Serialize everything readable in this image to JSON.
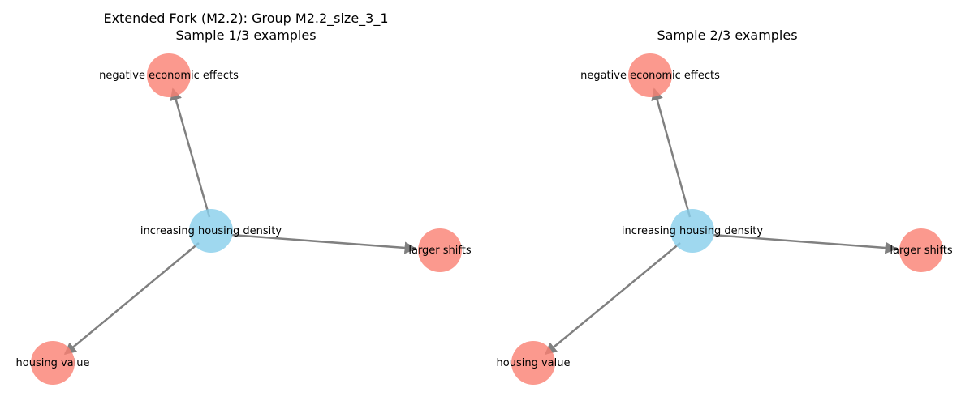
{
  "panels": [
    {
      "title_lines": [
        "Extended Fork (M2.2): Group M2.2_size_3_1",
        "Sample 1/3 examples"
      ],
      "nodes": [
        {
          "id": "center",
          "label": "increasing housing density",
          "color": "#87CEEB",
          "role": "cause"
        },
        {
          "id": "top",
          "label": "negative economic effects",
          "color": "#FA8072",
          "role": "effect"
        },
        {
          "id": "right",
          "label": "larger shifts",
          "color": "#FA8072",
          "role": "effect"
        },
        {
          "id": "bottom",
          "label": "housing value",
          "color": "#FA8072",
          "role": "effect"
        }
      ],
      "edges": [
        {
          "from": "center",
          "to": "top"
        },
        {
          "from": "center",
          "to": "right"
        },
        {
          "from": "center",
          "to": "bottom"
        }
      ]
    },
    {
      "title_lines": [
        "Sample 2/3 examples"
      ],
      "nodes": [
        {
          "id": "center",
          "label": "increasing housing density",
          "color": "#87CEEB",
          "role": "cause"
        },
        {
          "id": "top",
          "label": "negative economic effects",
          "color": "#FA8072",
          "role": "effect"
        },
        {
          "id": "right",
          "label": "larger shifts",
          "color": "#FA8072",
          "role": "effect"
        },
        {
          "id": "bottom",
          "label": "housing value",
          "color": "#FA8072",
          "role": "effect"
        }
      ],
      "edges": [
        {
          "from": "center",
          "to": "top"
        },
        {
          "from": "center",
          "to": "right"
        },
        {
          "from": "center",
          "to": "bottom"
        }
      ]
    }
  ]
}
